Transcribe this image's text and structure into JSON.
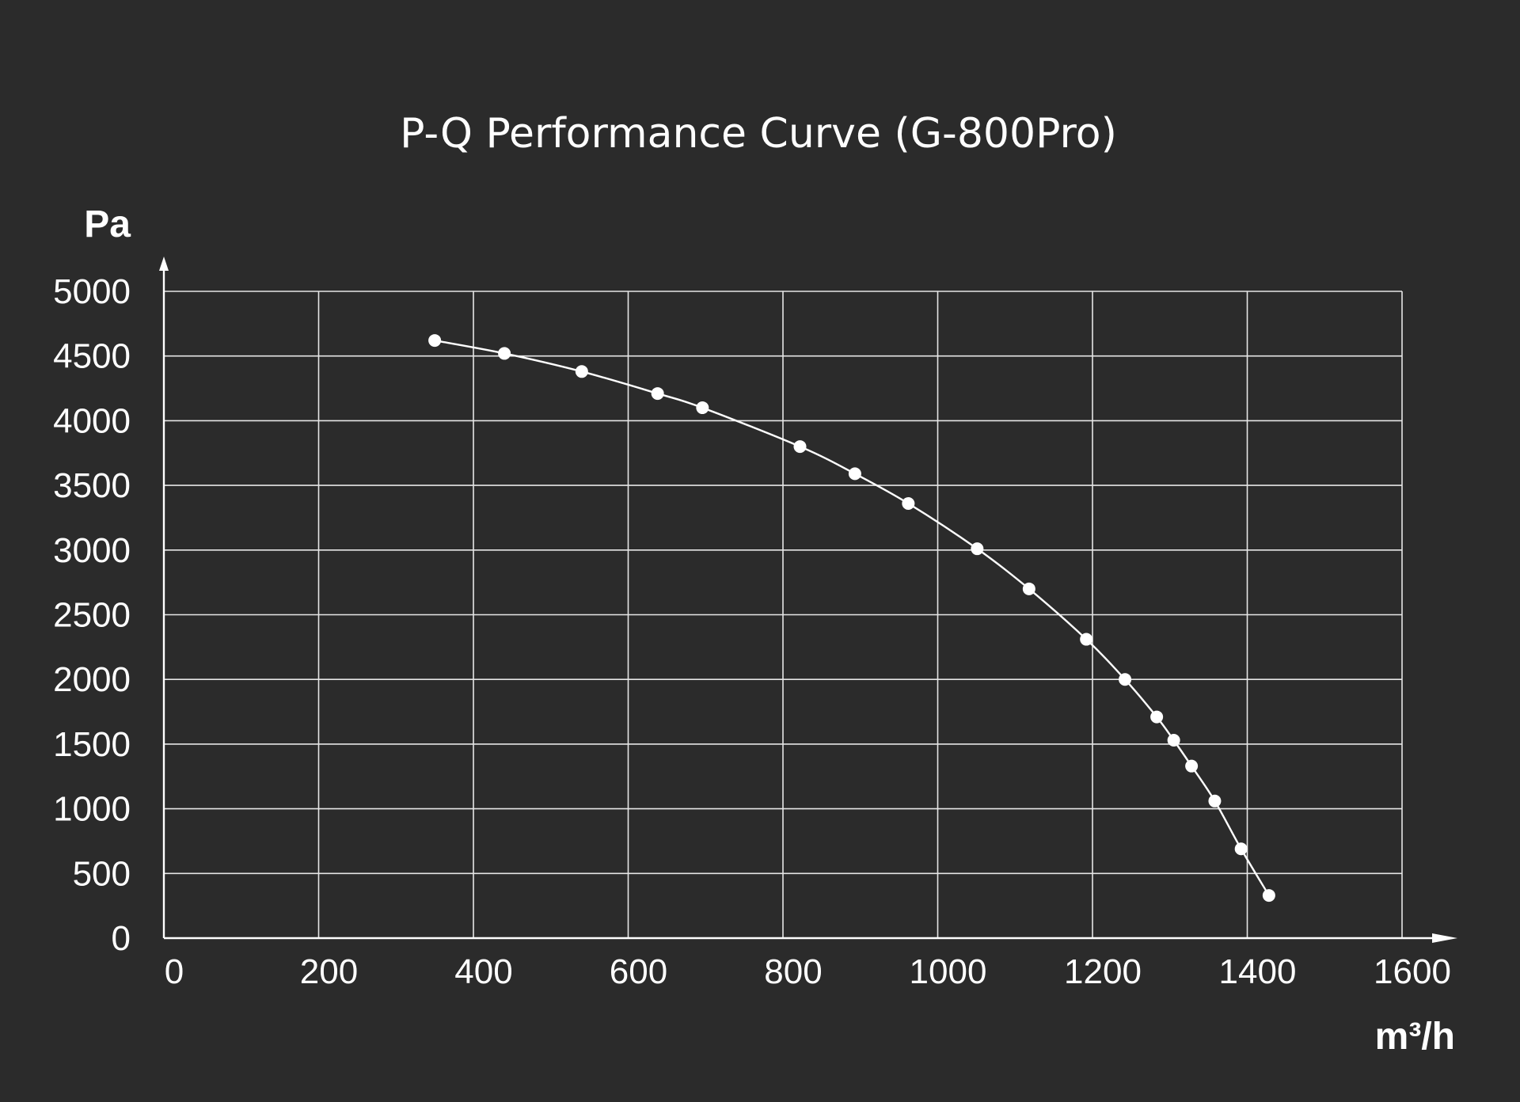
{
  "chart_data": {
    "type": "line",
    "title": "P-Q Performance Curve (G-800Pro)",
    "xlabel": "m³/h",
    "ylabel": "Pa",
    "xlim": [
      0,
      1600
    ],
    "ylim": [
      0,
      5000
    ],
    "x_ticks": [
      "0",
      "200",
      "400",
      "600",
      "800",
      "1000",
      "1200",
      "1400",
      "1600"
    ],
    "y_ticks": [
      "0",
      "500",
      "1000",
      "1500",
      "2000",
      "2500",
      "3000",
      "3500",
      "4000",
      "4500",
      "5000"
    ],
    "grid": true,
    "series": [
      {
        "markers": true,
        "x": [
          350,
          440,
          540,
          638,
          696,
          822,
          893,
          962,
          1051,
          1118,
          1192,
          1242,
          1283,
          1305,
          1328,
          1358,
          1392,
          1428
        ],
        "y": [
          4620,
          4520,
          4380,
          4210,
          4100,
          3800,
          3590,
          3360,
          3010,
          2700,
          2310,
          2000,
          1710,
          1530,
          1330,
          1060,
          690,
          330
        ]
      }
    ],
    "colors": {
      "background": "#2b2b2b",
      "foreground": "#ffffff",
      "grid": "#e6e6e6"
    }
  }
}
